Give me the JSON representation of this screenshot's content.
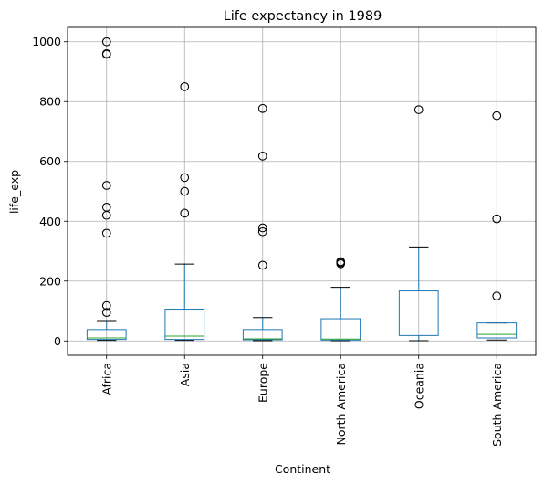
{
  "chart_data": {
    "type": "box",
    "title": "Life expectancy in 1989",
    "xlabel": "Continent",
    "ylabel": "life_exp",
    "ylim": [
      -48,
      1048
    ],
    "yticks": [
      0,
      200,
      400,
      600,
      800,
      1000
    ],
    "grid": true,
    "colors": {
      "box": "#1f77b4",
      "median": "#2ca02c",
      "flier": "#000000",
      "grid": "#b0b0b0"
    },
    "categories": [
      "Africa",
      "Asia",
      "Europe",
      "North America",
      "Oceania",
      "South America"
    ],
    "boxes": [
      {
        "category": "Africa",
        "whislo": 2,
        "q1": 5,
        "med": 10,
        "q3": 38,
        "whishi": 68,
        "fliers": [
          95,
          118,
          360,
          420,
          447,
          520,
          958,
          960,
          1000
        ]
      },
      {
        "category": "Asia",
        "whislo": 2,
        "q1": 5,
        "med": 16,
        "q3": 106,
        "whishi": 257,
        "fliers": [
          427,
          500,
          546,
          850
        ]
      },
      {
        "category": "Europe",
        "whislo": 1,
        "q1": 4,
        "med": 7,
        "q3": 38,
        "whishi": 78,
        "fliers": [
          253,
          365,
          378,
          618,
          777
        ]
      },
      {
        "category": "North America",
        "whislo": 1,
        "q1": 3,
        "med": 6,
        "q3": 74,
        "whishi": 179,
        "fliers": [
          258,
          262,
          265
        ]
      },
      {
        "category": "Oceania",
        "whislo": 1,
        "q1": 18,
        "med": 100,
        "q3": 167,
        "whishi": 314,
        "fliers": [
          773
        ]
      },
      {
        "category": "South America",
        "whislo": 3,
        "q1": 10,
        "med": 22,
        "q3": 60,
        "whishi": 60,
        "fliers": [
          150,
          408,
          753
        ]
      }
    ]
  }
}
